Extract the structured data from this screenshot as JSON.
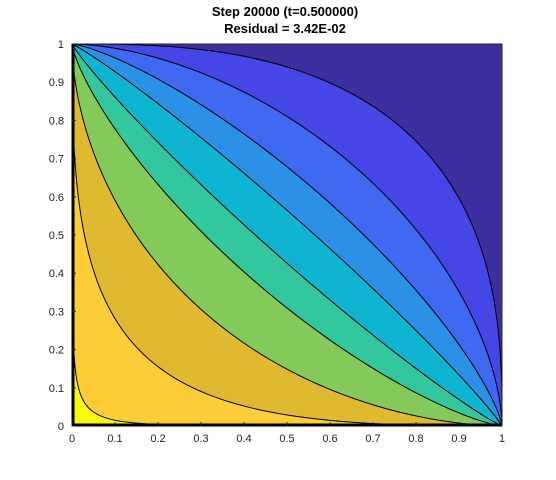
{
  "chart_data": {
    "type": "contour",
    "title_lines": [
      "Step 20000 (t=0.500000)",
      "Residual = 3.42E-02"
    ],
    "xlabel": "",
    "ylabel": "",
    "xlim": [
      0,
      1
    ],
    "ylim": [
      0,
      1
    ],
    "x_ticks": [
      "0",
      "0.1",
      "0.2",
      "0.3",
      "0.4",
      "0.5",
      "0.6",
      "0.7",
      "0.8",
      "0.9",
      "1"
    ],
    "y_ticks": [
      "0",
      "0.1",
      "0.2",
      "0.3",
      "0.4",
      "0.5",
      "0.6",
      "0.7",
      "0.8",
      "0.9",
      "1"
    ],
    "grid": false,
    "colormap": "parula",
    "levels": [
      {
        "color": "#f8fa0d"
      },
      {
        "color": "#fdcd37"
      },
      {
        "color": "#dfba30"
      },
      {
        "color": "#83ca5a"
      },
      {
        "color": "#33c79e"
      },
      {
        "color": "#0fb4d0"
      },
      {
        "color": "#2b91e6"
      },
      {
        "color": "#3e69f0"
      },
      {
        "color": "#4645e6"
      },
      {
        "color": "#3c2fa0"
      }
    ],
    "contour_lines": [
      {
        "sharpness": 0.22
      },
      {
        "sharpness": 0.4
      },
      {
        "sharpness": 0.58
      },
      {
        "sharpness": 0.76
      },
      {
        "sharpness": 0.9
      },
      {
        "sharpness": 1.1
      },
      {
        "sharpness": 1.32
      },
      {
        "sharpness": 1.72
      },
      {
        "sharpness": 2.7
      }
    ],
    "line_color": "#000000"
  }
}
